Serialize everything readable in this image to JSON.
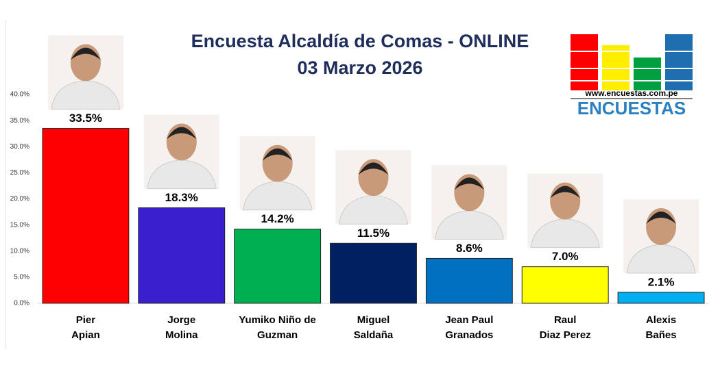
{
  "chart_data": {
    "type": "bar",
    "title": "Encuesta Alcaldía de Comas - ONLINE",
    "subtitle": "03 Marzo 2026",
    "categories": [
      [
        "Pier",
        "Apian"
      ],
      [
        "Jorge",
        "Molina"
      ],
      [
        "Yumiko Niño de",
        "Guzman"
      ],
      [
        "Miguel",
        "Saldaña"
      ],
      [
        "Jean Paul",
        "Granados"
      ],
      [
        "Raul",
        "Diaz Perez"
      ],
      [
        "Alexis",
        "Bañes"
      ]
    ],
    "values": [
      33.5,
      18.3,
      14.2,
      11.5,
      8.6,
      7.0,
      2.1
    ],
    "value_labels": [
      "33.5%",
      "18.3%",
      "14.2%",
      "11.5%",
      "8.6%",
      "7.0%",
      "2.1%"
    ],
    "colors": [
      "#ff0000",
      "#3a1fcf",
      "#00b050",
      "#002060",
      "#0070c0",
      "#ffff00",
      "#00b0f0"
    ],
    "ylim": [
      0,
      40
    ],
    "yticks": [
      {
        "value": 0,
        "label": "0.0%"
      },
      {
        "value": 5,
        "label": "5.0%"
      },
      {
        "value": 10,
        "label": "10.0%"
      },
      {
        "value": 15,
        "label": "15.0%"
      },
      {
        "value": 20,
        "label": "20.0%"
      },
      {
        "value": 25,
        "label": "25.0%"
      },
      {
        "value": 30,
        "label": "30.0%"
      },
      {
        "value": 35,
        "label": "35.0%"
      },
      {
        "value": 40,
        "label": "40.0%"
      }
    ],
    "grid": false,
    "annotations": [
      "www.encuestas.com.pe",
      "ENCUESTAS"
    ]
  }
}
